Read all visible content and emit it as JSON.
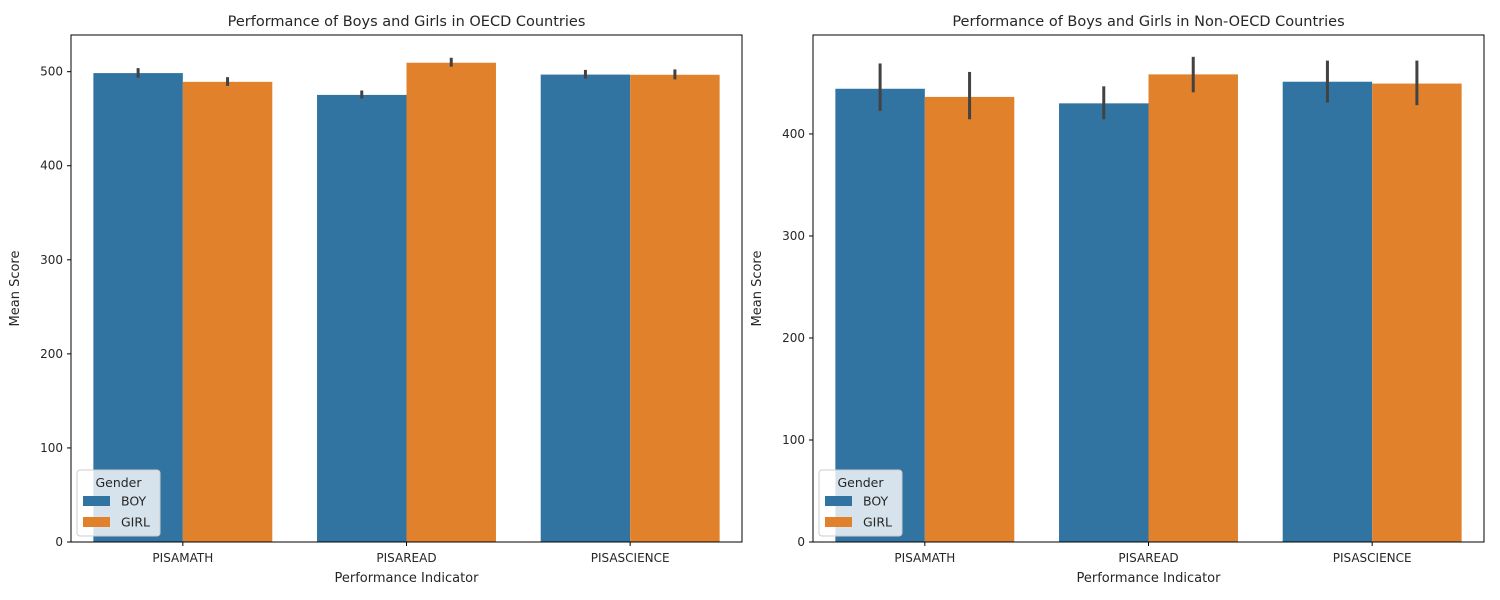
{
  "chart_data": [
    {
      "type": "bar",
      "title": "Performance of Boys and Girls in OECD Countries",
      "xlabel": "Performance Indicator",
      "ylabel": "Mean Score",
      "categories": [
        "PISAMATH",
        "PISAREAD",
        "PISASCIENCE"
      ],
      "ylim": [
        0,
        539
      ],
      "yticks": [
        0,
        100,
        200,
        300,
        400,
        500
      ],
      "legend": {
        "title": "Gender",
        "placement": "lower-left"
      },
      "series": [
        {
          "name": "BOY",
          "color": "#3274a1",
          "values": [
            498.5,
            475.3,
            496.9
          ],
          "ci_low": [
            493.6,
            471.5,
            492.6
          ],
          "ci_high": [
            503.8,
            480.0,
            501.9
          ]
        },
        {
          "name": "GIRL",
          "color": "#e1812c",
          "values": [
            489.2,
            509.5,
            496.7
          ],
          "ci_low": [
            484.9,
            505.3,
            491.8
          ],
          "ci_high": [
            494.2,
            514.8,
            502.4
          ]
        }
      ]
    },
    {
      "type": "bar",
      "title": "Performance of Boys and Girls in Non-OECD Countries",
      "xlabel": "Performance Indicator",
      "ylabel": "Mean Score",
      "categories": [
        "PISAMATH",
        "PISAREAD",
        "PISASCIENCE"
      ],
      "ylim": [
        0,
        497
      ],
      "yticks": [
        0,
        100,
        200,
        300,
        400
      ],
      "legend": {
        "title": "Gender",
        "placement": "lower-left"
      },
      "series": [
        {
          "name": "BOY",
          "color": "#3274a1",
          "values": [
            444.3,
            430.0,
            451.2
          ],
          "ci_low": [
            422.6,
            414.4,
            430.8
          ],
          "ci_high": [
            469.1,
            446.7,
            471.9
          ]
        },
        {
          "name": "GIRL",
          "color": "#e1812c",
          "values": [
            436.3,
            458.4,
            449.4
          ],
          "ci_low": [
            414.4,
            440.8,
            428.2
          ],
          "ci_high": [
            460.8,
            475.6,
            471.9
          ]
        }
      ]
    }
  ]
}
